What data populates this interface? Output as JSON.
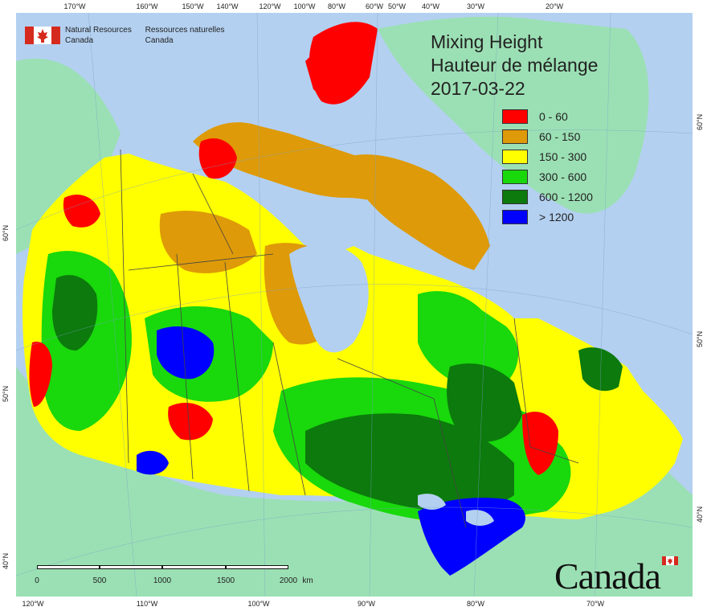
{
  "title": {
    "line1": "Mixing Height",
    "line2": "Hauteur de mélange",
    "date": "2017-03-22"
  },
  "agency": {
    "en_line1": "Natural Resources",
    "en_line2": "Canada",
    "fr_line1": "Ressources naturelles",
    "fr_line2": "Canada"
  },
  "legend": [
    {
      "label": "0 - 60",
      "color": "#ff0000"
    },
    {
      "label": "60 - 150",
      "color": "#de9a08"
    },
    {
      "label": "150 - 300",
      "color": "#ffff00"
    },
    {
      "label": "300 - 600",
      "color": "#19d80c"
    },
    {
      "label": "600 - 1200",
      "color": "#0c7a0c"
    },
    {
      "label": "> 1200",
      "color": "#0000ff"
    }
  ],
  "top_ticks": [
    "170°W",
    "160°W",
    "150°W",
    "140°W",
    "120°W",
    "100°W",
    "80°W",
    "60°W",
    "50°W",
    "40°W",
    "30°W",
    "20°W"
  ],
  "bottom_ticks": [
    "120°W",
    "110°W",
    "100°W",
    "90°W",
    "80°W",
    "70°W"
  ],
  "left_ticks": [
    "60°N",
    "50°N",
    "40°N"
  ],
  "right_ticks": [
    "60°N",
    "50°N",
    "40°N"
  ],
  "scale": {
    "labels": [
      "0",
      "500",
      "1000",
      "1500",
      "2000"
    ],
    "unit": "km"
  },
  "wordmark": "Canada",
  "colors": {
    "ocean": "#b3d0f0",
    "land_other": "#9be0b4",
    "border": "#444444"
  }
}
